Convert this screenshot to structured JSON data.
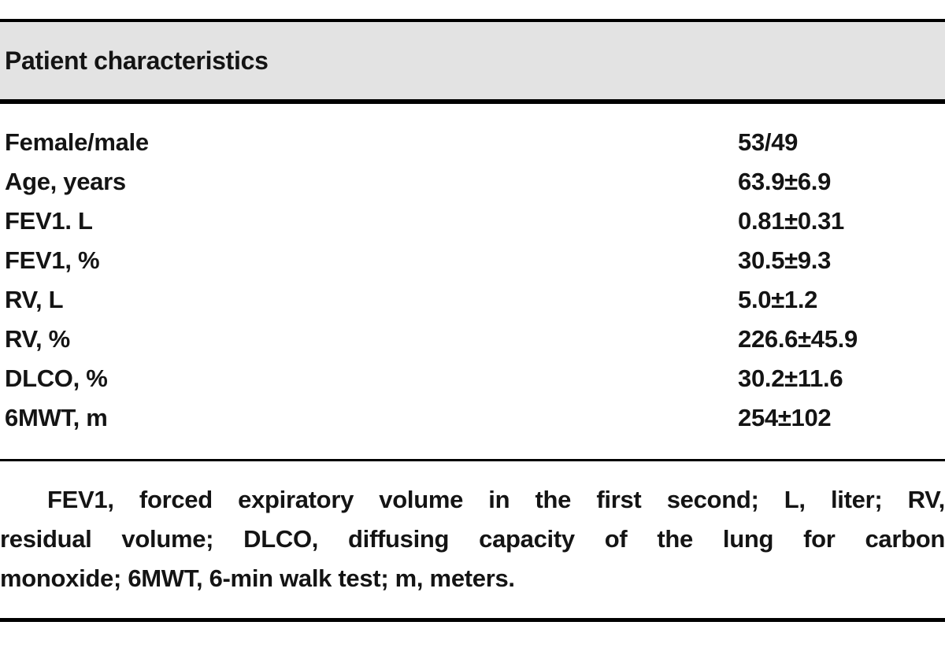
{
  "table": {
    "title": "Patient characteristics",
    "rows": [
      {
        "label": "Female/male",
        "value": "53/49"
      },
      {
        "label": "Age, years",
        "value": "63.9±6.9"
      },
      {
        "label": "FEV1. L",
        "value": "0.81±0.31"
      },
      {
        "label": "FEV1, %",
        "value": "30.5±9.3"
      },
      {
        "label": "RV, L",
        "value": "5.0±1.2"
      },
      {
        "label": "RV, %",
        "value": "226.6±45.9"
      },
      {
        "label": "DLCO, %",
        "value": "30.2±11.6"
      },
      {
        "label": "6MWT, m",
        "value": "254±102"
      }
    ],
    "footnote_lines": [
      "FEV1, forced expiratory volume in the first second; L, liter; RV,",
      "residual volume; DLCO, diffusing capacity of the lung for carbon",
      "monoxide; 6MWT, 6-min walk test; m, meters."
    ]
  },
  "colors": {
    "header_background": "#e3e3e3",
    "rule": "#000000",
    "text": "#141414",
    "page_background": "#ffffff"
  }
}
